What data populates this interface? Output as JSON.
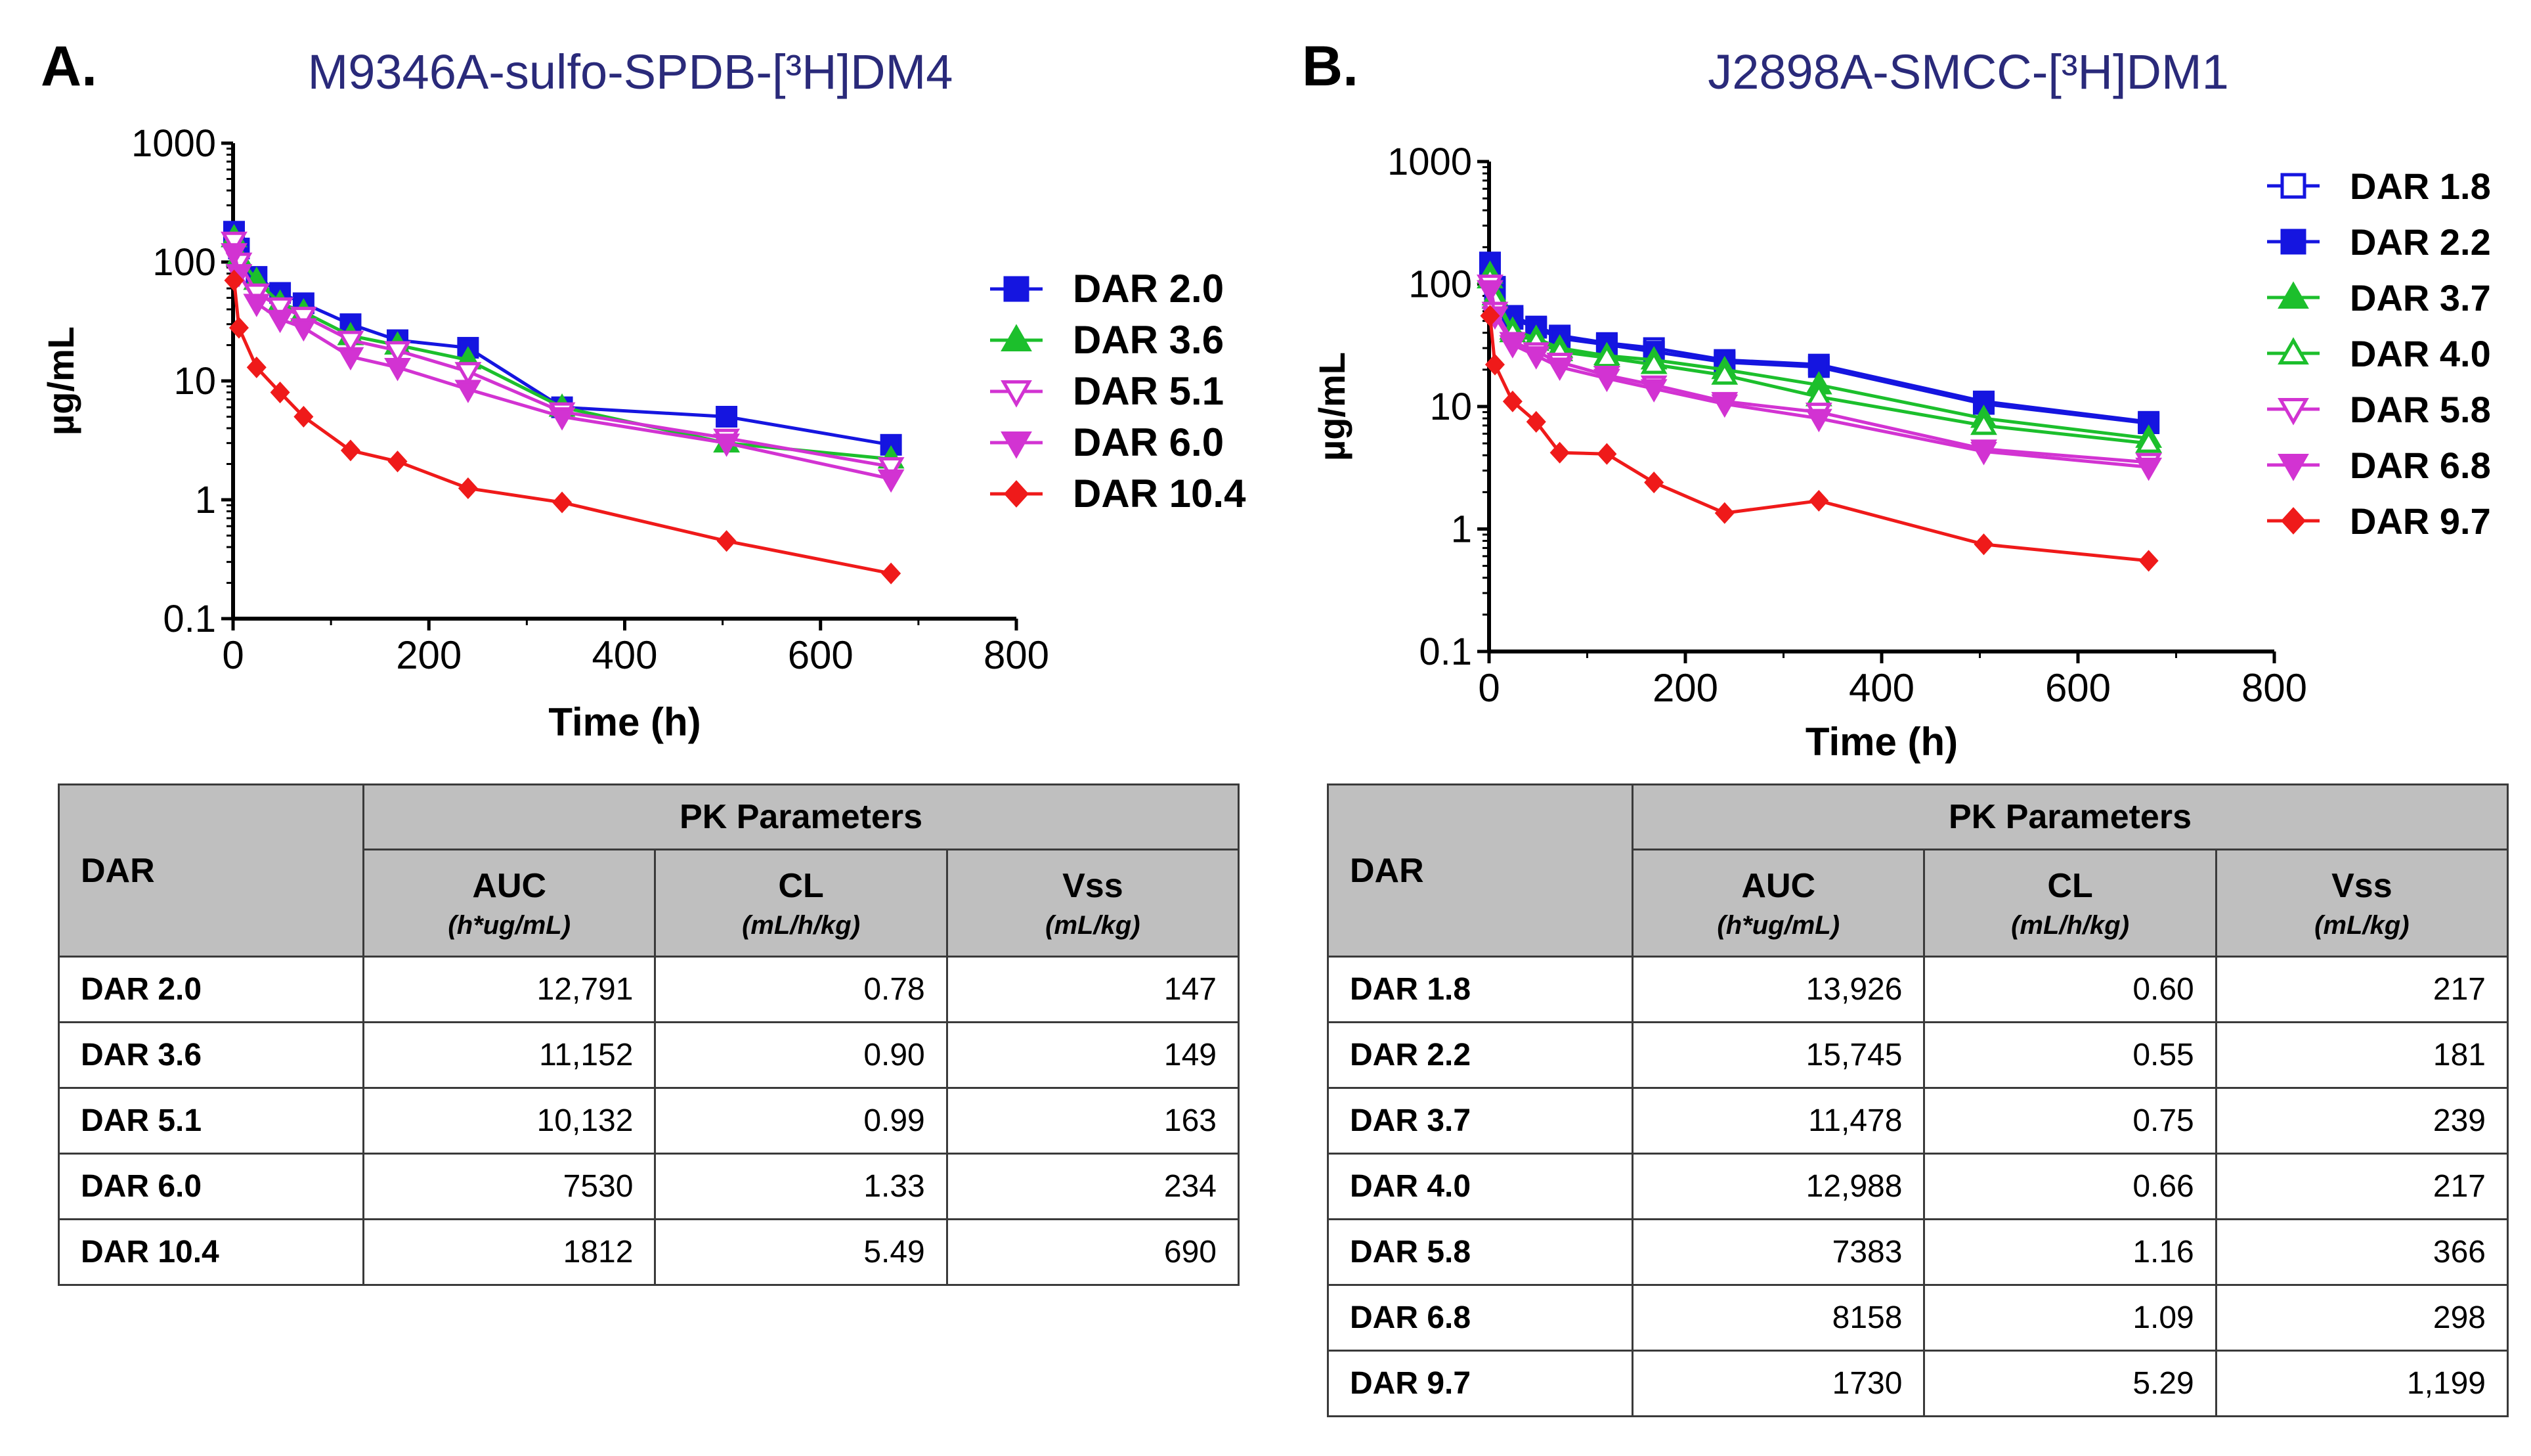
{
  "panels": [
    {
      "letter": "A.",
      "chart_data": {
        "type": "line",
        "title": "M9346A-sulfo-SPDB-[³H]DM4",
        "xlabel": "Time (h)",
        "ylabel": "µg/mL",
        "xlim": [
          0,
          800
        ],
        "xticks": [
          0,
          200,
          400,
          600,
          800
        ],
        "yscale": "log",
        "ylim": [
          0.1,
          1000
        ],
        "yticks": [
          0.1,
          1,
          10,
          100,
          1000
        ],
        "ytick_labels": [
          "0.1",
          "1",
          "10",
          "100",
          "1000"
        ],
        "legend_position": "right",
        "series": [
          {
            "name": "DAR 2.0",
            "color": "#1515e0",
            "marker": "square",
            "filled": true,
            "x": [
              1,
              6,
              24,
              48,
              72,
              120,
              168,
              240,
              336,
              504,
              672
            ],
            "y": [
              180,
              130,
              75,
              55,
              45,
              30,
              22,
              19,
              6,
              5,
              2.9
            ]
          },
          {
            "name": "DAR 3.6",
            "color": "#1cbf2c",
            "marker": "triangle-up",
            "filled": true,
            "x": [
              1,
              6,
              24,
              48,
              72,
              120,
              168,
              240,
              336,
              504,
              672
            ],
            "y": [
              160,
              110,
              70,
              45,
              38,
              24,
              20,
              15,
              6,
              3,
              2.2
            ]
          },
          {
            "name": "DAR 5.1",
            "color": "#d233d2",
            "marker": "triangle-down",
            "filled": false,
            "x": [
              1,
              6,
              24,
              48,
              72,
              120,
              168,
              240,
              336,
              504,
              672
            ],
            "y": [
              150,
              100,
              55,
              42,
              35,
              22,
              18,
              12,
              5.5,
              3.3,
              1.9
            ]
          },
          {
            "name": "DAR 6.0",
            "color": "#d233d2",
            "marker": "triangle-down",
            "filled": true,
            "x": [
              1,
              6,
              24,
              48,
              72,
              120,
              168,
              240,
              336,
              504,
              672
            ],
            "y": [
              120,
              80,
              45,
              33,
              28,
              16,
              13,
              8.5,
              5,
              3,
              1.5
            ]
          },
          {
            "name": "DAR 10.4",
            "color": "#ef1a1a",
            "marker": "diamond",
            "filled": true,
            "x": [
              1,
              6,
              24,
              48,
              72,
              120,
              168,
              240,
              336,
              504,
              672
            ],
            "y": [
              70,
              28,
              13,
              8,
              5,
              2.6,
              2.1,
              1.25,
              0.95,
              0.45,
              0.24
            ]
          }
        ]
      },
      "table": {
        "header_dar": "DAR",
        "header_group": "PK Parameters",
        "columns": [
          {
            "name": "AUC",
            "unit": "(h*ug/mL)"
          },
          {
            "name": "CL",
            "unit": "(mL/h/kg)"
          },
          {
            "name": "Vss",
            "unit": "(mL/kg)"
          }
        ],
        "rows": [
          {
            "dar": "DAR 2.0",
            "auc": "12,791",
            "cl": "0.78",
            "vss": "147"
          },
          {
            "dar": "DAR 3.6",
            "auc": "11,152",
            "cl": "0.90",
            "vss": "149"
          },
          {
            "dar": "DAR 5.1",
            "auc": "10,132",
            "cl": "0.99",
            "vss": "163"
          },
          {
            "dar": "DAR 6.0",
            "auc": "7530",
            "cl": "1.33",
            "vss": "234"
          },
          {
            "dar": "DAR 10.4",
            "auc": "1812",
            "cl": "5.49",
            "vss": "690"
          }
        ]
      }
    },
    {
      "letter": "B.",
      "chart_data": {
        "type": "line",
        "title": "J2898A-SMCC-[³H]DM1",
        "xlabel": "Time (h)",
        "ylabel": "µg/mL",
        "xlim": [
          0,
          800
        ],
        "xticks": [
          0,
          200,
          400,
          600,
          800
        ],
        "yscale": "log",
        "ylim": [
          0.1,
          1000
        ],
        "yticks": [
          0.1,
          1,
          10,
          100,
          1000
        ],
        "ytick_labels": [
          "0.1",
          "1",
          "10",
          "100",
          "1000"
        ],
        "legend_position": "top-right",
        "series": [
          {
            "name": "DAR 1.8",
            "color": "#1515e0",
            "marker": "square",
            "filled": false,
            "x": [
              1,
              6,
              24,
              48,
              72,
              120,
              168,
              240,
              336,
              504,
              672
            ],
            "y": [
              140,
              90,
              55,
              45,
              38,
              33,
              30,
              24,
              22,
              11,
              7.5
            ]
          },
          {
            "name": "DAR 2.2",
            "color": "#1515e0",
            "marker": "square",
            "filled": true,
            "x": [
              1,
              6,
              24,
              48,
              72,
              120,
              168,
              240,
              336,
              504,
              672
            ],
            "y": [
              150,
              95,
              52,
              44,
              36,
              32,
              28,
              23,
              21,
              10.5,
              7.3
            ]
          },
          {
            "name": "DAR 3.7",
            "color": "#1cbf2c",
            "marker": "triangle-up",
            "filled": true,
            "x": [
              1,
              6,
              24,
              48,
              72,
              120,
              168,
              240,
              336,
              504,
              672
            ],
            "y": [
              120,
              80,
              42,
              36,
              30,
              26,
              24,
              20,
              15,
              8,
              5.5
            ]
          },
          {
            "name": "DAR 4.0",
            "color": "#1cbf2c",
            "marker": "triangle-up",
            "filled": false,
            "x": [
              1,
              6,
              24,
              48,
              72,
              120,
              168,
              240,
              336,
              504,
              672
            ],
            "y": [
              110,
              75,
              40,
              34,
              28,
              25,
              22,
              18,
              12,
              7,
              5
            ]
          },
          {
            "name": "DAR 5.8",
            "color": "#d233d2",
            "marker": "triangle-down",
            "filled": false,
            "x": [
              1,
              6,
              24,
              48,
              72,
              120,
              168,
              240,
              336,
              504,
              672
            ],
            "y": [
              100,
              60,
              34,
              28,
              23,
              18,
              15,
              11,
              9,
              4.5,
              3.5
            ]
          },
          {
            "name": "DAR 6.8",
            "color": "#d233d2",
            "marker": "triangle-down",
            "filled": true,
            "x": [
              1,
              6,
              24,
              48,
              72,
              120,
              168,
              240,
              336,
              504,
              672
            ],
            "y": [
              90,
              55,
              32,
              26,
              21,
              17,
              14,
              10.5,
              8,
              4.3,
              3.2
            ]
          },
          {
            "name": "DAR 9.7",
            "color": "#ef1a1a",
            "marker": "diamond",
            "filled": true,
            "x": [
              1,
              6,
              24,
              48,
              72,
              120,
              168,
              240,
              336,
              504,
              672
            ],
            "y": [
              55,
              22,
              11,
              7.5,
              4.2,
              4.1,
              2.4,
              1.35,
              1.7,
              0.75,
              0.55
            ]
          }
        ]
      },
      "table": {
        "header_dar": "DAR",
        "header_group": "PK Parameters",
        "columns": [
          {
            "name": "AUC",
            "unit": "(h*ug/mL)"
          },
          {
            "name": "CL",
            "unit": "(mL/h/kg)"
          },
          {
            "name": "Vss",
            "unit": "(mL/kg)"
          }
        ],
        "rows": [
          {
            "dar": "DAR 1.8",
            "auc": "13,926",
            "cl": "0.60",
            "vss": "217"
          },
          {
            "dar": "DAR 2.2",
            "auc": "15,745",
            "cl": "0.55",
            "vss": "181"
          },
          {
            "dar": "DAR 3.7",
            "auc": "11,478",
            "cl": "0.75",
            "vss": "239"
          },
          {
            "dar": "DAR 4.0",
            "auc": "12,988",
            "cl": "0.66",
            "vss": "217"
          },
          {
            "dar": "DAR 5.8",
            "auc": "7383",
            "cl": "1.16",
            "vss": "366"
          },
          {
            "dar": "DAR 6.8",
            "auc": "8158",
            "cl": "1.09",
            "vss": "298"
          },
          {
            "dar": "DAR 9.7",
            "auc": "1730",
            "cl": "5.29",
            "vss": "1,199"
          }
        ]
      }
    }
  ]
}
